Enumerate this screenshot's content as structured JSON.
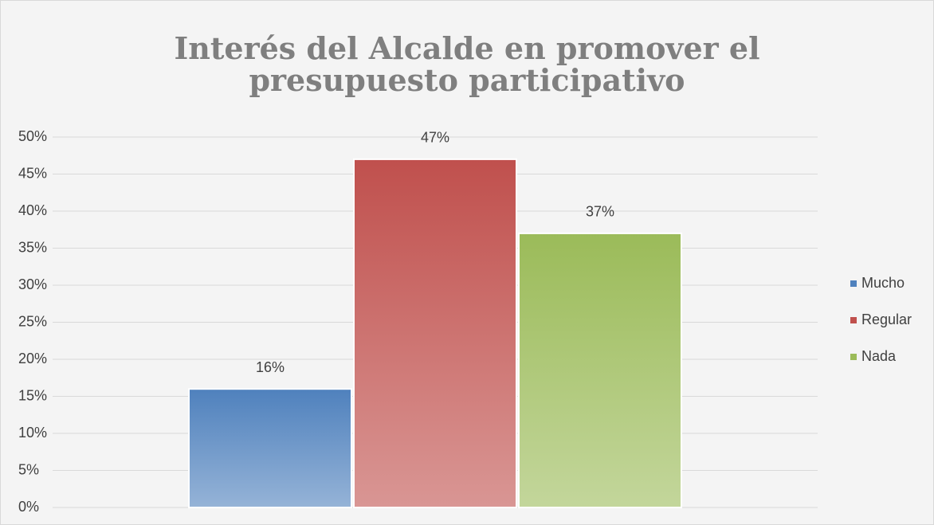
{
  "chart_data": {
    "type": "bar",
    "title": "Interés del Alcalde en promover el presupuesto participativo",
    "categories": [
      null
    ],
    "series": [
      {
        "name": "Mucho",
        "color": "#4f81bd",
        "values": [
          16
        ],
        "value_labels": [
          "16%"
        ]
      },
      {
        "name": "Regular",
        "color": "#c0504d",
        "values": [
          47
        ],
        "value_labels": [
          "47%"
        ]
      },
      {
        "name": "Nada",
        "color": "#9bbb59",
        "values": [
          37
        ],
        "value_labels": [
          "37%"
        ]
      }
    ],
    "ylim": [
      0,
      50
    ],
    "yticks": [
      {
        "value": 0,
        "label": "0%"
      },
      {
        "value": 5,
        "label": "5%"
      },
      {
        "value": 10,
        "label": "10%"
      },
      {
        "value": 15,
        "label": "15%"
      },
      {
        "value": 20,
        "label": "20%"
      },
      {
        "value": 25,
        "label": "25%"
      },
      {
        "value": 30,
        "label": "30%"
      },
      {
        "value": 35,
        "label": "35%"
      },
      {
        "value": 40,
        "label": "40%"
      },
      {
        "value": 45,
        "label": "45%"
      },
      {
        "value": 50,
        "label": "50%"
      }
    ],
    "grid": true,
    "legend": "right"
  }
}
